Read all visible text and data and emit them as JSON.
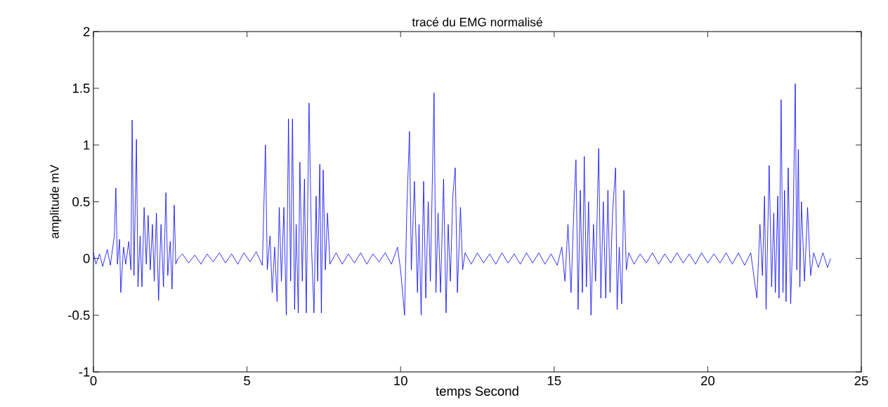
{
  "chart_data": {
    "type": "line",
    "title": "tracé du EMG normalisé",
    "xlabel": "temps Second",
    "ylabel": "amplitude mV",
    "xlim": [
      0,
      25
    ],
    "xticks": [
      0,
      5,
      10,
      15,
      20,
      25
    ],
    "ylim": [
      -1,
      2
    ],
    "yticks": [
      -1,
      -0.5,
      0,
      0.5,
      1,
      1.5,
      2
    ],
    "series": [
      {
        "color": "#0000ff",
        "x": [
          0.0,
          0.08,
          0.2,
          0.3,
          0.45,
          0.55,
          0.68,
          0.73,
          0.78,
          0.85,
          0.89,
          0.98,
          1.05,
          1.15,
          1.22,
          1.26,
          1.32,
          1.4,
          1.45,
          1.52,
          1.58,
          1.65,
          1.72,
          1.78,
          1.85,
          1.92,
          1.98,
          2.05,
          2.12,
          2.2,
          2.28,
          2.36,
          2.42,
          2.5,
          2.56,
          2.63,
          2.68,
          2.75,
          2.9,
          3.1,
          3.3,
          3.5,
          3.7,
          3.9,
          4.1,
          4.3,
          4.5,
          4.7,
          4.9,
          5.1,
          5.3,
          5.5,
          5.6,
          5.66,
          5.75,
          5.82,
          5.9,
          5.98,
          6.05,
          6.12,
          6.2,
          6.28,
          6.35,
          6.42,
          6.48,
          6.55,
          6.6,
          6.67,
          6.72,
          6.8,
          6.87,
          6.93,
          7.02,
          7.1,
          7.18,
          7.25,
          7.3,
          7.37,
          7.42,
          7.48,
          7.55,
          7.62,
          7.7,
          7.9,
          8.1,
          8.3,
          8.5,
          8.7,
          8.9,
          9.1,
          9.3,
          9.5,
          9.7,
          9.9,
          10.0,
          10.13,
          10.2,
          10.29,
          10.35,
          10.45,
          10.55,
          10.6,
          10.67,
          10.75,
          10.82,
          10.9,
          10.97,
          11.09,
          11.15,
          11.22,
          11.3,
          11.4,
          11.48,
          11.55,
          11.62,
          11.7,
          11.78,
          11.85,
          11.95,
          12.02,
          12.1,
          12.3,
          12.5,
          12.7,
          12.9,
          13.1,
          13.3,
          13.5,
          13.7,
          13.9,
          14.1,
          14.3,
          14.5,
          14.7,
          14.9,
          15.1,
          15.25,
          15.35,
          15.45,
          15.55,
          15.65,
          15.71,
          15.78,
          15.85,
          15.92,
          15.98,
          16.05,
          16.12,
          16.2,
          16.28,
          16.35,
          16.45,
          16.52,
          16.6,
          16.68,
          16.75,
          16.82,
          16.9,
          17.0,
          17.05,
          17.12,
          17.2,
          17.27,
          17.35,
          17.43,
          17.6,
          17.8,
          18.0,
          18.2,
          18.4,
          18.6,
          18.8,
          19.0,
          19.2,
          19.4,
          19.6,
          19.8,
          20.0,
          20.2,
          20.4,
          20.6,
          20.8,
          21.0,
          21.2,
          21.4,
          21.6,
          21.7,
          21.78,
          21.85,
          21.9,
          22.0,
          22.08,
          22.15,
          22.2,
          22.28,
          22.32,
          22.39,
          22.45,
          22.5,
          22.55,
          22.62,
          22.7,
          22.78,
          22.85,
          22.9,
          22.95,
          23.0,
          23.05,
          23.15,
          23.25,
          23.35,
          23.45,
          23.6,
          23.75,
          23.9,
          24.0
        ],
        "values": [
          0.05,
          -0.05,
          0.04,
          -0.07,
          0.08,
          -0.06,
          0.2,
          0.62,
          -0.05,
          0.17,
          -0.3,
          0.1,
          -0.05,
          0.15,
          -0.1,
          1.22,
          -0.15,
          1.05,
          -0.25,
          0.2,
          -0.25,
          0.45,
          -0.05,
          0.38,
          -0.1,
          0.3,
          -0.2,
          0.4,
          -0.37,
          0.3,
          -0.25,
          0.58,
          -0.15,
          0.15,
          -0.27,
          0.47,
          -0.05,
          0.0,
          0.04,
          -0.04,
          0.03,
          -0.05,
          0.04,
          -0.03,
          0.05,
          -0.04,
          0.04,
          -0.05,
          0.05,
          -0.03,
          0.06,
          -0.06,
          1.0,
          -0.1,
          0.2,
          -0.3,
          0.1,
          -0.38,
          0.45,
          -0.2,
          0.45,
          -0.5,
          1.23,
          -0.2,
          1.23,
          -0.45,
          0.3,
          -0.48,
          0.85,
          -0.2,
          0.7,
          -0.48,
          1.37,
          0.1,
          -0.48,
          0.55,
          -0.2,
          0.83,
          -0.48,
          0.78,
          -0.1,
          0.4,
          -0.05,
          0.05,
          -0.05,
          0.04,
          -0.04,
          0.05,
          -0.05,
          0.04,
          -0.03,
          0.05,
          -0.05,
          0.1,
          -0.1,
          -0.5,
          0.4,
          1.12,
          -0.1,
          0.68,
          -0.3,
          0.3,
          -0.5,
          0.68,
          -0.35,
          0.5,
          -0.2,
          1.46,
          -0.3,
          0.4,
          -0.3,
          0.7,
          -0.48,
          0.3,
          -0.2,
          0.55,
          0.8,
          -0.3,
          0.45,
          -0.1,
          0.05,
          -0.05,
          0.05,
          -0.04,
          0.04,
          -0.05,
          0.05,
          -0.04,
          0.04,
          -0.05,
          0.05,
          -0.04,
          0.05,
          -0.05,
          0.04,
          -0.06,
          0.1,
          -0.2,
          0.3,
          -0.3,
          0.5,
          0.87,
          -0.45,
          0.6,
          -0.3,
          0.9,
          -0.25,
          0.5,
          -0.5,
          0.3,
          -0.2,
          0.97,
          -0.35,
          0.5,
          -0.35,
          0.6,
          -0.3,
          0.4,
          0.8,
          -0.45,
          0.1,
          -0.4,
          0.6,
          -0.1,
          0.05,
          -0.05,
          0.04,
          -0.04,
          0.05,
          -0.05,
          0.04,
          -0.04,
          0.05,
          -0.04,
          0.04,
          -0.05,
          0.05,
          -0.04,
          0.04,
          -0.04,
          0.05,
          -0.05,
          0.05,
          -0.06,
          0.05,
          -0.35,
          0.3,
          -0.15,
          0.55,
          -0.45,
          0.82,
          -0.25,
          0.4,
          -0.3,
          0.55,
          -0.35,
          1.4,
          -0.3,
          0.6,
          -0.38,
          0.8,
          -0.4,
          0.3,
          1.54,
          -0.1,
          0.96,
          -0.25,
          0.5,
          -0.2,
          0.45,
          -0.15,
          0.05,
          -0.08,
          0.05,
          -0.08,
          0.0
        ]
      }
    ]
  }
}
